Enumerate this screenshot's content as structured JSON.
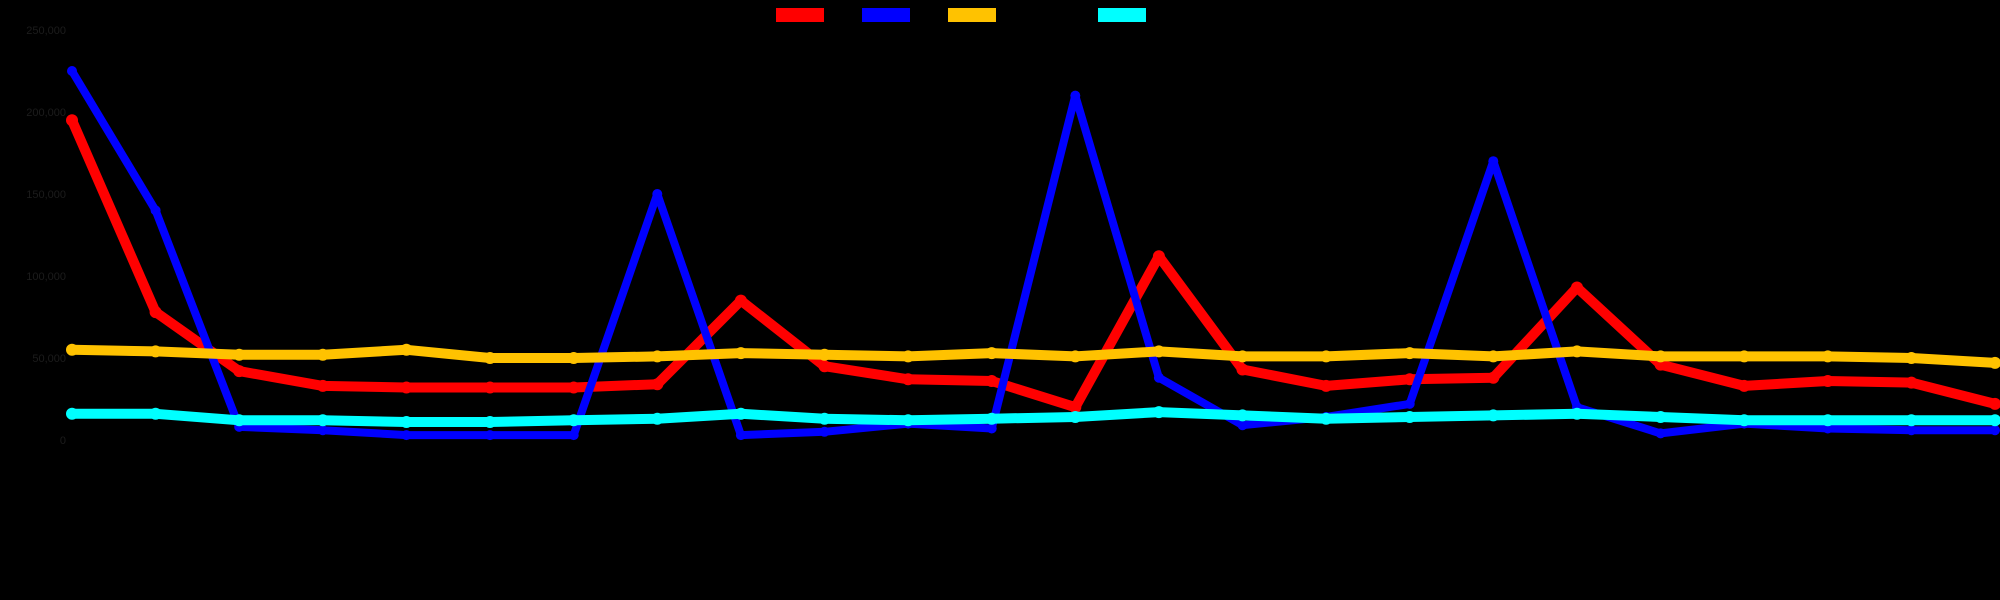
{
  "chart_data": {
    "type": "line",
    "title": "",
    "xlabel": "",
    "ylabel": "",
    "background": "#000000",
    "text_color": "#1c1c1c",
    "legend_position": "top-center",
    "grid": false,
    "ylim": [
      0,
      250000
    ],
    "yticks": [
      0,
      50000,
      100000,
      150000,
      200000,
      250000
    ],
    "categories": [
      "",
      "",
      "",
      "",
      "",
      "",
      "",
      "",
      "",
      "",
      "",
      "",
      "",
      "",
      "",
      "",
      "",
      "",
      "",
      "",
      "",
      "",
      "",
      ""
    ],
    "series": [
      {
        "color": "#ff0000",
        "width": 10,
        "values": [
          195000,
          78000,
          42000,
          33000,
          32000,
          32000,
          32000,
          34000,
          85000,
          45000,
          37000,
          36000,
          20000,
          112000,
          43000,
          33000,
          37000,
          38000,
          93000,
          46000,
          33000,
          36000,
          35000,
          22000
        ]
      },
      {
        "color": "#0000ff",
        "width": 8,
        "values": [
          225000,
          140000,
          8000,
          6000,
          3000,
          3000,
          3000,
          150000,
          3000,
          5000,
          10000,
          7000,
          210000,
          38000,
          9000,
          14000,
          22000,
          170000,
          20000,
          4000,
          10000,
          7000,
          6000,
          6000
        ]
      },
      {
        "color": "#ffc200",
        "width": 10,
        "values": [
          55000,
          54000,
          52000,
          52000,
          55000,
          50000,
          50000,
          51000,
          53000,
          52000,
          51000,
          53000,
          51000,
          54000,
          51000,
          51000,
          53000,
          51000,
          54000,
          51000,
          51000,
          51000,
          50000,
          47000
        ]
      },
      {
        "color": "#00ffff",
        "width": 10,
        "values": [
          16000,
          16000,
          12000,
          12000,
          11000,
          11000,
          12000,
          13000,
          16000,
          13000,
          12000,
          13000,
          14000,
          17000,
          15000,
          13000,
          14000,
          15000,
          16000,
          14000,
          12000,
          12000,
          12000,
          12000
        ]
      }
    ]
  }
}
